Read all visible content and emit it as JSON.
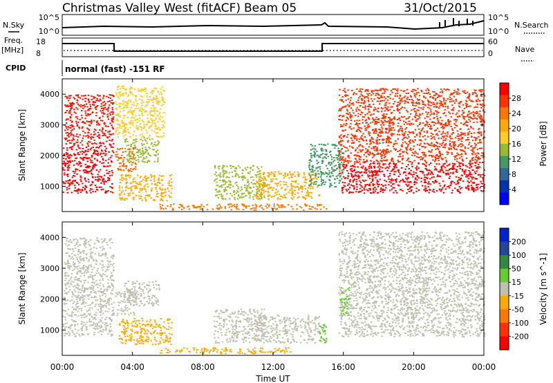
{
  "header": {
    "station": "Christmas Valley West (fitACF)",
    "beam": "Beam 05",
    "date": "31/Oct/2015"
  },
  "strip": {
    "nsky_label": "N.Sky",
    "nsearch_label": "N.Search",
    "freq_label": "Freq.",
    "freq_unit": "[MHz]",
    "nave_label": "Nave",
    "cpid_label": "CPID",
    "cpid_text": "normal (fast) -151 RF",
    "nsky_ticks": [
      "10^5",
      "10^0"
    ],
    "nsearch_ticks": [
      "10^5",
      "10^0"
    ],
    "freq_ticks": [
      "18",
      "8"
    ],
    "nave_ticks": [
      "60",
      "0"
    ]
  },
  "chart_data": [
    {
      "type": "heatmap",
      "title": "",
      "xlabel": "Time UT",
      "ylabel": "Slant Range [km]",
      "xlim": [
        0,
        24
      ],
      "ylim": [
        180,
        4500
      ],
      "x_ticks": [
        "00:00",
        "04:00",
        "08:00",
        "12:00",
        "16:00",
        "20:00",
        "00:00"
      ],
      "y_ticks": [
        "1000",
        "2000",
        "3000",
        "4000"
      ],
      "colorbar": {
        "label": "Power [dB]",
        "ticks": [
          "28",
          "24",
          "20",
          "16",
          "12",
          "8",
          "4"
        ],
        "colors": [
          "#ff0000",
          "#ff3300",
          "#ff7700",
          "#ffaa00",
          "#ffcc22",
          "#99bb33",
          "#449966",
          "#336699",
          "#0033aa",
          "#0000ff"
        ]
      },
      "echo_regions": [
        {
          "t0": 0.0,
          "t1": 2.9,
          "r0": 800,
          "r1": 2300,
          "color": "#ff0000"
        },
        {
          "t0": 0.1,
          "t1": 2.9,
          "r0": 2300,
          "r1": 4000,
          "color": "#ff1100"
        },
        {
          "t0": 3.0,
          "t1": 4.2,
          "r0": 1500,
          "r1": 2300,
          "color": "#ff6600"
        },
        {
          "t0": 3.2,
          "t1": 6.2,
          "r0": 550,
          "r1": 1400,
          "color": "#ffaa00"
        },
        {
          "t0": 3.5,
          "t1": 5.5,
          "r0": 1800,
          "r1": 2600,
          "color": "#99bb33"
        },
        {
          "t0": 3.0,
          "t1": 5.8,
          "r0": 2600,
          "r1": 4300,
          "color": "#ffcc22"
        },
        {
          "t0": 8.6,
          "t1": 11.5,
          "r0": 600,
          "r1": 1700,
          "color": "#99bb33"
        },
        {
          "t0": 11.0,
          "t1": 14.6,
          "r0": 600,
          "r1": 1500,
          "color": "#ffaa00"
        },
        {
          "t0": 5.5,
          "t1": 15.0,
          "r0": 250,
          "r1": 450,
          "color": "#ff7700"
        },
        {
          "t0": 15.7,
          "t1": 24.0,
          "r0": 800,
          "r1": 1800,
          "color": "#ff0000"
        },
        {
          "t0": 15.7,
          "t1": 24.0,
          "r0": 1800,
          "r1": 4200,
          "color": "#ff3300"
        },
        {
          "t0": 14.0,
          "t1": 16.0,
          "r0": 1000,
          "r1": 2400,
          "color": "#449966"
        }
      ]
    },
    {
      "type": "heatmap",
      "title": "",
      "xlabel": "Time UT",
      "ylabel": "Slant Range [km]",
      "xlim": [
        0,
        24
      ],
      "ylim": [
        180,
        4500
      ],
      "x_ticks": [
        "00:00",
        "04:00",
        "08:00",
        "12:00",
        "16:00",
        "20:00",
        "00:00"
      ],
      "y_ticks": [
        "1000",
        "2000",
        "3000",
        "4000"
      ],
      "colorbar": {
        "label": "Velocity [m s^-1]",
        "ticks": [
          "200",
          "100",
          "50",
          "15",
          "-15",
          "-50",
          "-100",
          "-200"
        ],
        "colors": [
          "#0022cc",
          "#224499",
          "#338844",
          "#66cc33",
          "#c0c0b0",
          "#ffaa00",
          "#ff7700",
          "#ff3300",
          "#ff0000"
        ]
      },
      "echo_regions": [
        {
          "t0": 0.0,
          "t1": 2.9,
          "r0": 800,
          "r1": 2300,
          "color": "#c0c0b0"
        },
        {
          "t0": 0.1,
          "t1": 2.9,
          "r0": 2300,
          "r1": 4000,
          "color": "#c0c0b0"
        },
        {
          "t0": 3.0,
          "t1": 4.2,
          "r0": 1500,
          "r1": 2300,
          "color": "#c0c0b0"
        },
        {
          "t0": 3.2,
          "t1": 6.2,
          "r0": 550,
          "r1": 1400,
          "color": "#ffaa00"
        },
        {
          "t0": 3.5,
          "t1": 5.5,
          "r0": 1800,
          "r1": 2600,
          "color": "#c0c0b0"
        },
        {
          "t0": 8.6,
          "t1": 11.5,
          "r0": 600,
          "r1": 1700,
          "color": "#c0c0b0"
        },
        {
          "t0": 11.0,
          "t1": 14.6,
          "r0": 600,
          "r1": 1500,
          "color": "#c0c0b0"
        },
        {
          "t0": 5.5,
          "t1": 13.0,
          "r0": 250,
          "r1": 450,
          "color": "#ffaa00"
        },
        {
          "t0": 15.7,
          "t1": 24.0,
          "r0": 800,
          "r1": 1800,
          "color": "#c0c0b0"
        },
        {
          "t0": 15.7,
          "t1": 24.0,
          "r0": 1800,
          "r1": 4200,
          "color": "#c0c0b0"
        },
        {
          "t0": 14.6,
          "t1": 15.0,
          "r0": 600,
          "r1": 1200,
          "color": "#66cc33"
        },
        {
          "t0": 15.8,
          "t1": 16.3,
          "r0": 1500,
          "r1": 2400,
          "color": "#66cc33"
        }
      ]
    }
  ]
}
